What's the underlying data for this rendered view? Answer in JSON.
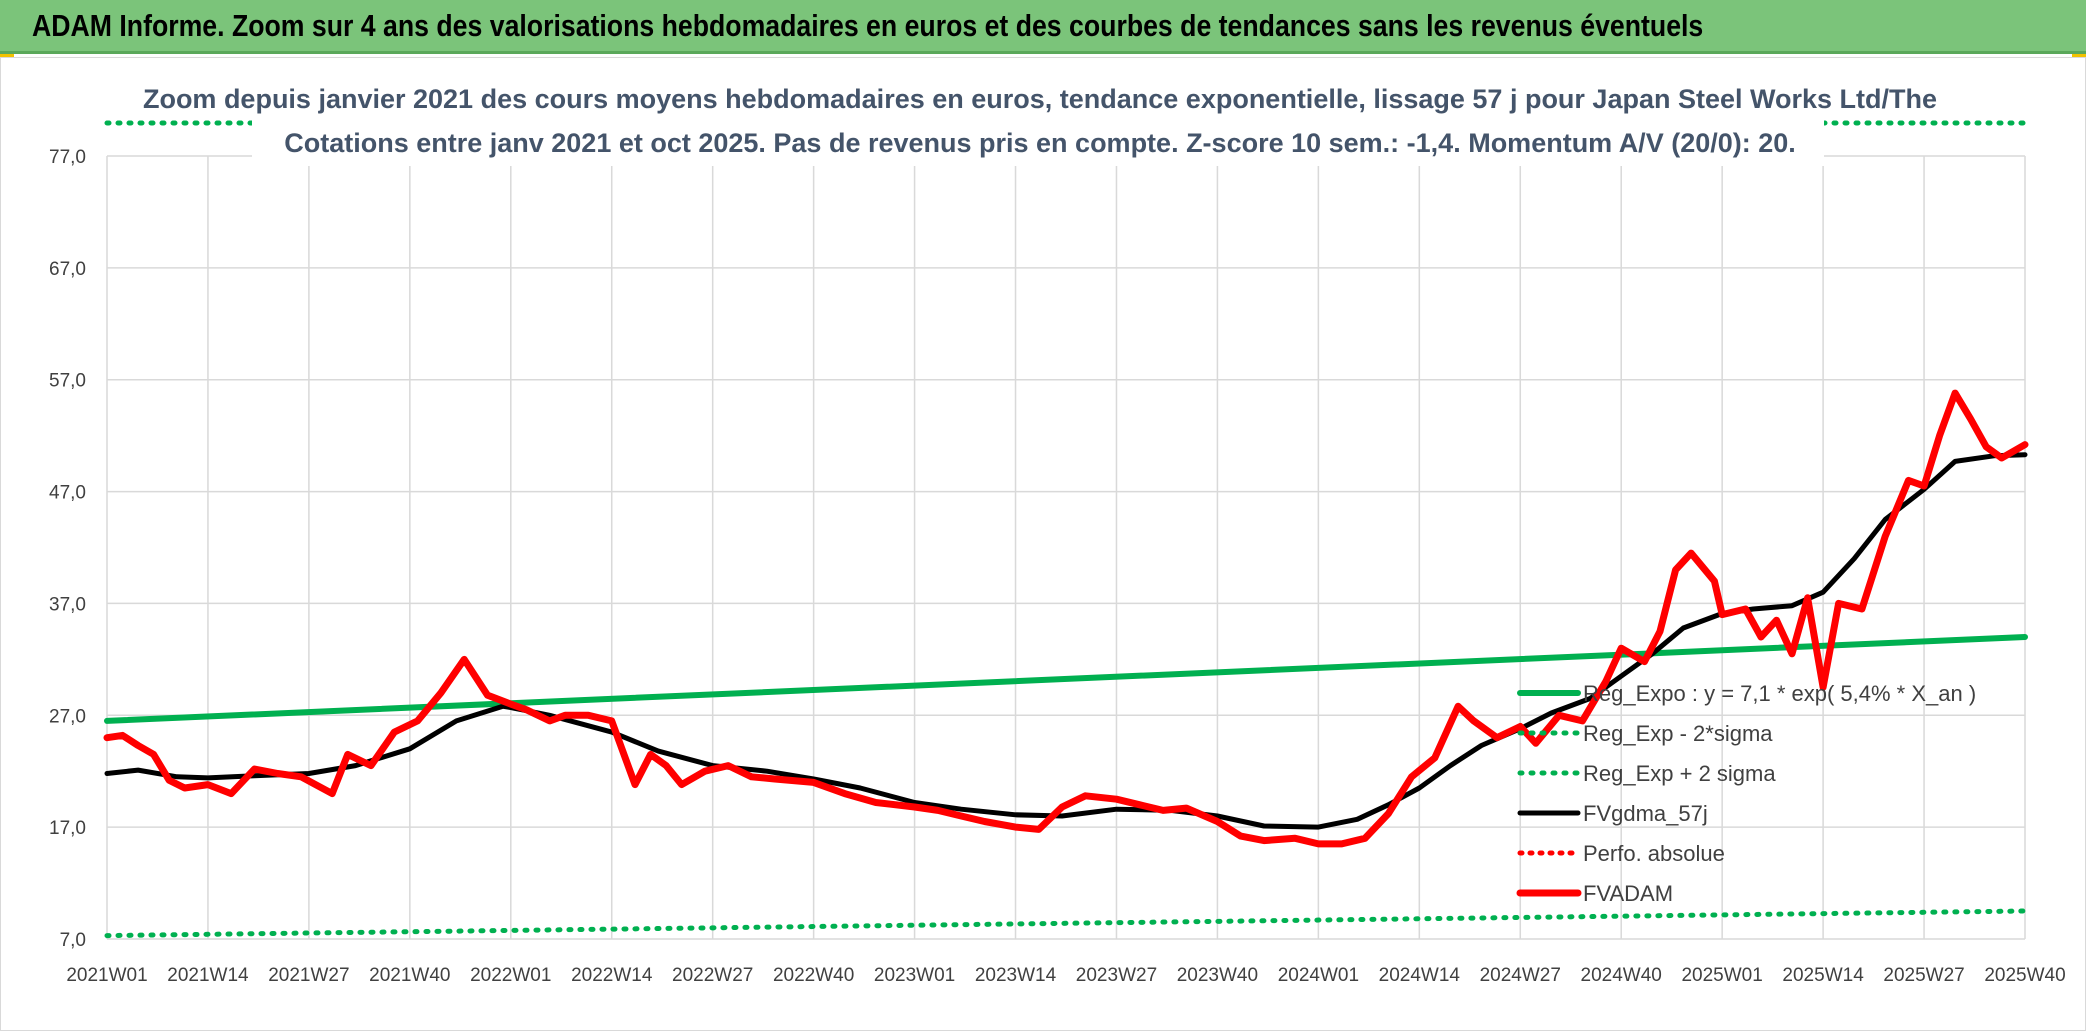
{
  "header": {
    "title": "ADAM Informe. Zoom sur 4 ans des valorisations hebdomadaires en euros et des courbes de tendances sans les revenus éventuels"
  },
  "colors": {
    "header_bg": "#7bc47a",
    "green_series": "#00b050",
    "black_series": "#000000",
    "red_series": "#ff0000",
    "title_text": "#44546a"
  },
  "chart_data": {
    "type": "line",
    "title_line1": "Zoom depuis janvier 2021 des cours moyens hebdomadaires en euros, tendance exponentielle, lissage 57 j pour Japan Steel Works Ltd/The",
    "title_line2": "Cotations entre janv 2021 et oct 2025. Pas de revenus pris en compte. Z-score 10 sem.: -1,4. Momentum A/V (20/0): 20.",
    "ylim": [
      7,
      77
    ],
    "y_ticks": [
      "77,0",
      "67,0",
      "57,0",
      "47,0",
      "37,0",
      "27,0",
      "17,0",
      "7,0"
    ],
    "y_tick_values": [
      77,
      67,
      57,
      47,
      37,
      27,
      17,
      7
    ],
    "x_ticks": [
      "2021W01",
      "2021W14",
      "2021W27",
      "2021W40",
      "2022W01",
      "2022W14",
      "2022W27",
      "2022W40",
      "2023W01",
      "2023W14",
      "2023W27",
      "2023W40",
      "2024W01",
      "2024W14",
      "2024W27",
      "2024W40",
      "2025W01",
      "2025W14",
      "2025W27",
      "2025W40"
    ],
    "grid": true,
    "legend_position": "right",
    "legend": [
      {
        "name": "Reg_Expo : y = 7,1 * exp( 5,4% *  X_an )",
        "style": "solid-green"
      },
      {
        "name": "Reg_Exp - 2*sigma",
        "style": "dotted-green"
      },
      {
        "name": "Reg_Exp + 2 sigma",
        "style": "dotted-green"
      },
      {
        "name": "FVgdma_57j",
        "style": "solid-black"
      },
      {
        "name": "Perfo. absolue",
        "style": "dotted-red"
      },
      {
        "name": "FVADAM",
        "style": "solid-red-thick"
      }
    ],
    "series": [
      {
        "name": "Reg_Expo : y = 7,1 * exp( 5,4% *  X_an )",
        "x": [
          "2021W01",
          "2025W40"
        ],
        "values": [
          26.5,
          34.0
        ]
      },
      {
        "name": "Reg_Exp - 2*sigma",
        "x": [
          "2021W01",
          "2025W40"
        ],
        "values": [
          7.3,
          9.5
        ]
      },
      {
        "name": "Reg_Exp + 2 sigma",
        "x": [
          "2021W01",
          "2025W40"
        ],
        "values": [
          79.5,
          79.5
        ]
      },
      {
        "name": "FVgdma_57j",
        "x": [
          "2021W01",
          "2021W05",
          "2021W10",
          "2021W14",
          "2021W20",
          "2021W27",
          "2021W33",
          "2021W40",
          "2021W46",
          "2021W52",
          "2022W01",
          "2022W06",
          "2022W14",
          "2022W20",
          "2022W27",
          "2022W34",
          "2022W40",
          "2022W46",
          "2023W01",
          "2023W07",
          "2023W14",
          "2023W20",
          "2023W27",
          "2023W34",
          "2023W40",
          "2023W46",
          "2024W01",
          "2024W06",
          "2024W10",
          "2024W14",
          "2024W18",
          "2024W22",
          "2024W27",
          "2024W31",
          "2024W36",
          "2024W40",
          "2024W44",
          "2024W48",
          "2025W01",
          "2025W05",
          "2025W10",
          "2025W14",
          "2025W18",
          "2025W22",
          "2025W27",
          "2025W31",
          "2025W36",
          "2025W40"
        ],
        "values": [
          21.8,
          22.1,
          21.5,
          21.4,
          21.6,
          21.8,
          22.5,
          24.0,
          26.5,
          27.8,
          27.7,
          27.0,
          25.5,
          23.8,
          22.5,
          22.0,
          21.3,
          20.5,
          19.2,
          18.6,
          18.1,
          18.0,
          18.6,
          18.5,
          18.0,
          17.1,
          17.0,
          17.7,
          19.0,
          20.5,
          22.5,
          24.3,
          25.8,
          27.2,
          28.5,
          30.5,
          32.5,
          34.8,
          36.1,
          36.5,
          36.8,
          38.0,
          41.0,
          44.5,
          47.2,
          49.7,
          50.2,
          50.3
        ]
      },
      {
        "name": "FVADAM",
        "x": [
          "2021W01",
          "2021W03",
          "2021W05",
          "2021W07",
          "2021W09",
          "2021W11",
          "2021W14",
          "2021W17",
          "2021W20",
          "2021W23",
          "2021W26",
          "2021W30",
          "2021W32",
          "2021W35",
          "2021W38",
          "2021W41",
          "2021W44",
          "2021W47",
          "2021W50",
          "2022W01",
          "2022W03",
          "2022W06",
          "2022W08",
          "2022W11",
          "2022W14",
          "2022W17",
          "2022W19",
          "2022W21",
          "2022W23",
          "2022W26",
          "2022W29",
          "2022W32",
          "2022W35",
          "2022W40",
          "2022W44",
          "2022W48",
          "2023W01",
          "2023W04",
          "2023W07",
          "2023W10",
          "2023W14",
          "2023W17",
          "2023W20",
          "2023W23",
          "2023W27",
          "2023W30",
          "2023W33",
          "2023W36",
          "2023W40",
          "2023W43",
          "2023W46",
          "2023W50",
          "2024W01",
          "2024W04",
          "2024W07",
          "2024W10",
          "2024W13",
          "2024W16",
          "2024W19",
          "2024W21",
          "2024W24",
          "2024W27",
          "2024W29",
          "2024W32",
          "2024W35",
          "2024W38",
          "2024W40",
          "2024W43",
          "2024W45",
          "2024W47",
          "2024W49",
          "2024W52",
          "2025W01",
          "2025W04",
          "2025W06",
          "2025W08",
          "2025W10",
          "2025W12",
          "2025W14",
          "2025W16",
          "2025W19",
          "2025W22",
          "2025W25",
          "2025W27",
          "2025W29",
          "2025W31",
          "2025W33",
          "2025W35",
          "2025W37",
          "2025W40"
        ],
        "values": [
          25.0,
          25.2,
          24.3,
          23.5,
          21.2,
          20.5,
          20.8,
          20.0,
          22.2,
          21.8,
          21.5,
          20.0,
          23.5,
          22.5,
          25.5,
          26.5,
          29.0,
          32.0,
          28.8,
          28.0,
          27.5,
          26.5,
          27.0,
          27.0,
          26.5,
          20.8,
          23.5,
          22.5,
          20.8,
          22.0,
          22.5,
          21.5,
          21.3,
          21.0,
          20.0,
          19.2,
          18.8,
          18.5,
          18.0,
          17.5,
          17.0,
          16.8,
          18.8,
          19.8,
          19.5,
          19.0,
          18.5,
          18.7,
          17.5,
          16.2,
          15.8,
          16.0,
          15.5,
          15.5,
          16.0,
          18.2,
          21.5,
          23.2,
          27.8,
          26.5,
          25.0,
          26.0,
          24.5,
          27.0,
          26.5,
          30.0,
          33.0,
          31.8,
          34.5,
          40.0,
          41.5,
          39.0,
          36.0,
          36.5,
          34.0,
          35.5,
          32.5,
          37.5,
          29.5,
          37.0,
          36.5,
          43.0,
          48.0,
          47.5,
          52.0,
          55.8,
          53.5,
          51.0,
          50.0,
          51.2
        ]
      }
    ]
  }
}
